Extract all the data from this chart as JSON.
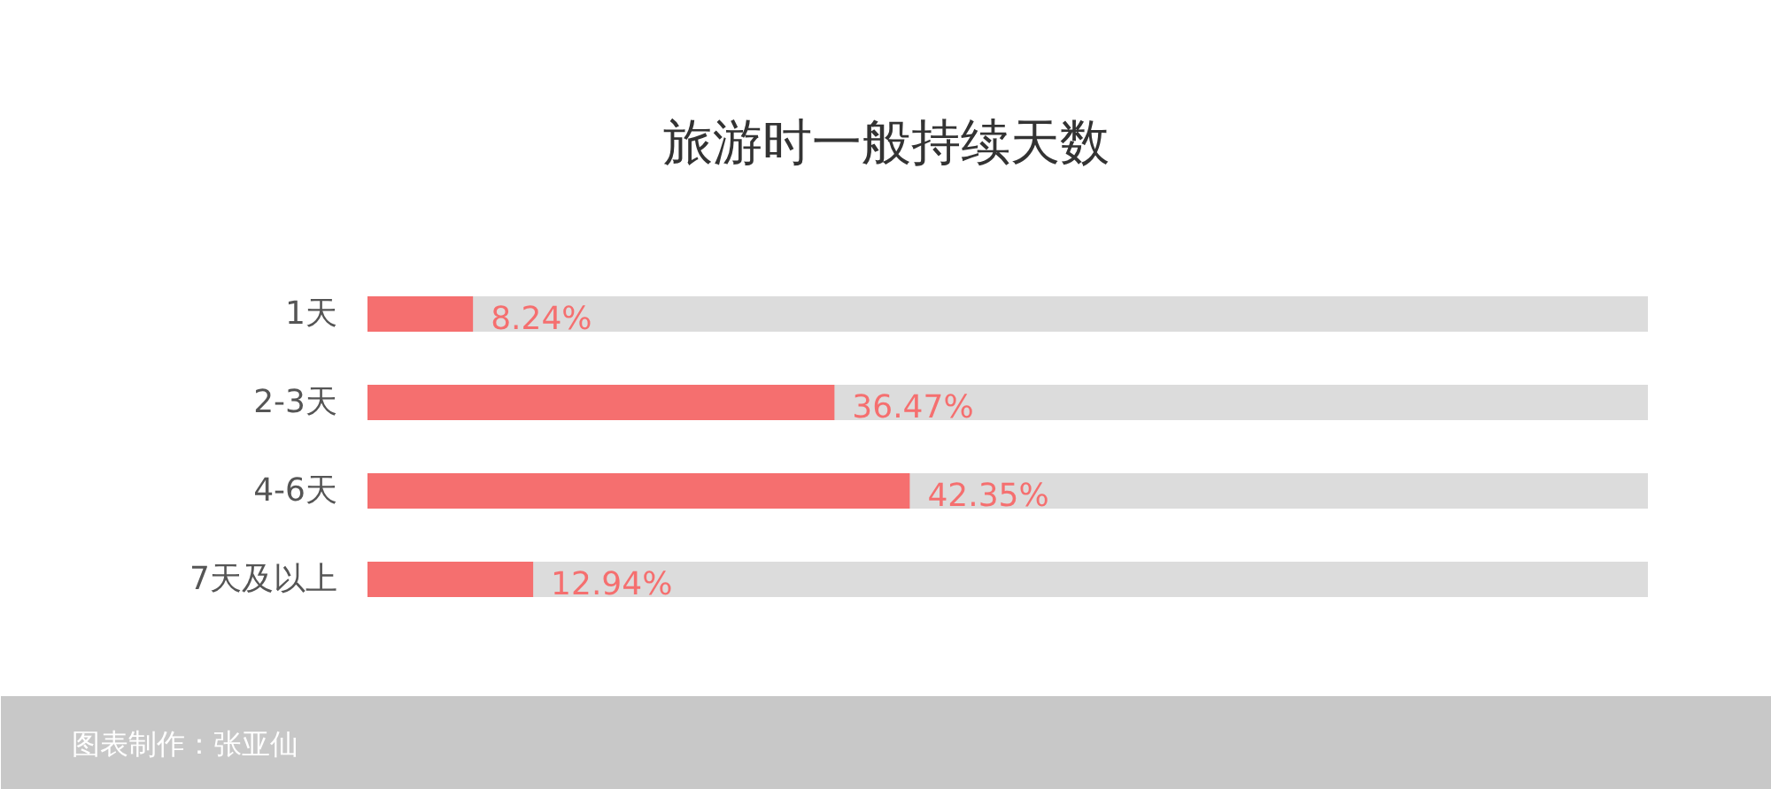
{
  "chart_data": {
    "type": "bar",
    "orientation": "horizontal",
    "title": "旅游时一般持续天数",
    "categories": [
      "1天",
      "2-3天",
      "4-6天",
      "7天及以上"
    ],
    "series": [
      {
        "color": "#f56f6f",
        "values": [
          8.24,
          36.47,
          42.35,
          12.94
        ],
        "value_labels": [
          "8.24%",
          "36.47%",
          "42.35%",
          "12.94%"
        ]
      }
    ],
    "xlim": [
      0,
      100
    ],
    "tick_labels": "y",
    "grid": false,
    "annotations": [
      "图表制作：张亚仙"
    ]
  }
}
